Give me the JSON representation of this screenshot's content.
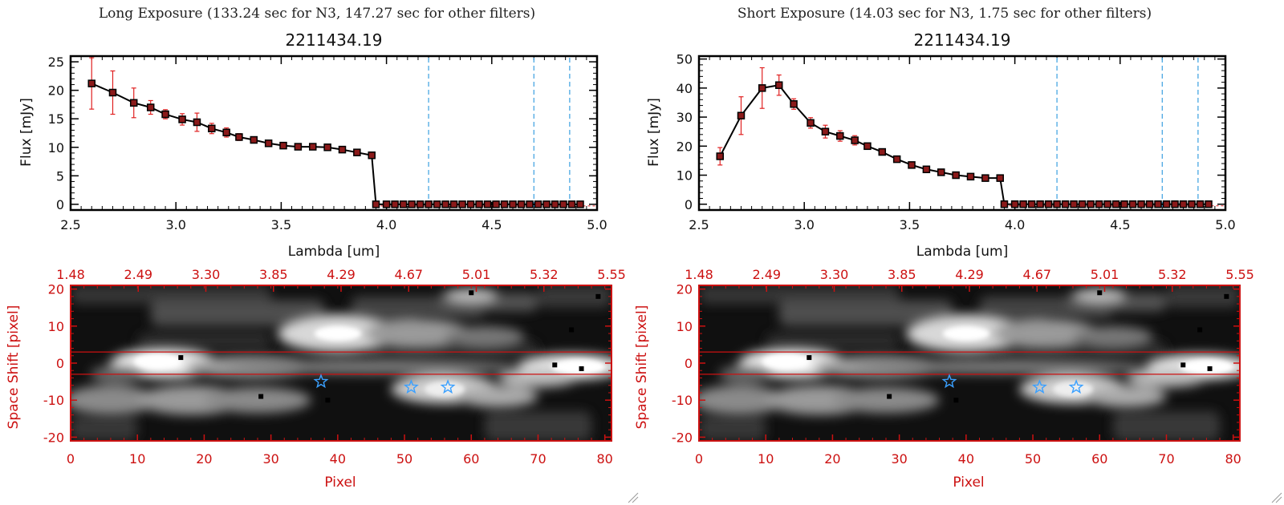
{
  "colors": {
    "data_line": "#000000",
    "error_bar": "#e02020",
    "marker_fill": "#8b1a1a",
    "filter_line": "#3aa0e0",
    "image_axis": "#cc1111",
    "star": "#3aa0ff"
  },
  "chart_data": [
    {
      "id": "long",
      "type": "line",
      "panel_title": "Long Exposure (133.24 sec for N3, 147.27 sec for other filters)",
      "title": "2211434.19",
      "xlabel": "Lambda [um]",
      "ylabel": "Flux [mJy]",
      "xlim": [
        2.5,
        5.0
      ],
      "ylim": [
        -1,
        26
      ],
      "xticks": [
        "2.5",
        "3.0",
        "3.5",
        "4.0",
        "4.5",
        "5.0"
      ],
      "yticks": [
        "0",
        "5",
        "10",
        "15",
        "20",
        "25"
      ],
      "filter_lines": [
        4.2,
        4.7,
        4.87
      ],
      "x": [
        2.6,
        2.7,
        2.8,
        2.88,
        2.95,
        3.03,
        3.1,
        3.17,
        3.24,
        3.3,
        3.37,
        3.44,
        3.51,
        3.58,
        3.65,
        3.72,
        3.79,
        3.86,
        3.93,
        3.95,
        4.0,
        4.04,
        4.08,
        4.12,
        4.16,
        4.2,
        4.24,
        4.28,
        4.32,
        4.36,
        4.4,
        4.44,
        4.48,
        4.52,
        4.56,
        4.6,
        4.64,
        4.68,
        4.72,
        4.76,
        4.8,
        4.84,
        4.88,
        4.92
      ],
      "y": [
        21.2,
        19.6,
        17.8,
        17.0,
        15.8,
        14.9,
        14.4,
        13.3,
        12.6,
        11.8,
        11.3,
        10.7,
        10.3,
        10.1,
        10.1,
        10.0,
        9.6,
        9.1,
        8.6,
        0,
        0,
        0,
        0,
        0,
        0,
        0,
        0,
        0,
        0,
        0,
        0,
        0,
        0,
        0,
        0,
        0,
        0,
        0,
        0,
        0,
        0,
        0,
        0,
        0
      ],
      "err": [
        4.5,
        3.8,
        2.6,
        1.2,
        0.8,
        1.0,
        1.6,
        0.9,
        0.8,
        0.6,
        0.5,
        0.4,
        0.4,
        0.4,
        0.4,
        0.4,
        0.4,
        0.4,
        0.4,
        0,
        0,
        0,
        0,
        0,
        0,
        0,
        0,
        0,
        0,
        0,
        0,
        0,
        0,
        0,
        0,
        0,
        0,
        0,
        0,
        0,
        0,
        0,
        0,
        0
      ]
    },
    {
      "id": "short",
      "type": "line",
      "panel_title": "Short Exposure (14.03 sec for N3, 1.75 sec for other filters)",
      "title": "2211434.19",
      "xlabel": "Lambda [um]",
      "ylabel": "Flux [mJy]",
      "xlim": [
        2.5,
        5.0
      ],
      "ylim": [
        -2,
        51
      ],
      "xticks": [
        "2.5",
        "3.0",
        "3.5",
        "4.0",
        "4.5",
        "5.0"
      ],
      "yticks": [
        "0",
        "10",
        "20",
        "30",
        "40",
        "50"
      ],
      "filter_lines": [
        4.2,
        4.7,
        4.87
      ],
      "x": [
        2.6,
        2.7,
        2.8,
        2.88,
        2.95,
        3.03,
        3.1,
        3.17,
        3.24,
        3.3,
        3.37,
        3.44,
        3.51,
        3.58,
        3.65,
        3.72,
        3.79,
        3.86,
        3.93,
        3.95,
        4.0,
        4.04,
        4.08,
        4.12,
        4.16,
        4.2,
        4.24,
        4.28,
        4.32,
        4.36,
        4.4,
        4.44,
        4.48,
        4.52,
        4.56,
        4.6,
        4.64,
        4.68,
        4.72,
        4.76,
        4.8,
        4.84,
        4.88,
        4.92
      ],
      "y": [
        16.5,
        30.5,
        40.0,
        41.0,
        34.5,
        28.0,
        25.0,
        23.5,
        22.0,
        20.0,
        18.0,
        15.5,
        13.5,
        12.0,
        11.0,
        10.0,
        9.5,
        9.0,
        9.0,
        0,
        0,
        0,
        0,
        0,
        0,
        0,
        0,
        0,
        0,
        0,
        0,
        0,
        0,
        0,
        0,
        0,
        0,
        0,
        0,
        0,
        0,
        0,
        0,
        0
      ],
      "err": [
        3.0,
        6.5,
        7.0,
        3.5,
        1.8,
        1.8,
        2.2,
        1.8,
        1.6,
        1.0,
        0.8,
        0.6,
        0.6,
        0.6,
        0.5,
        0.5,
        0.5,
        0.5,
        0.5,
        0,
        0,
        0,
        0,
        0,
        0,
        0,
        0,
        0,
        0,
        0,
        0,
        0,
        0,
        0,
        0,
        0,
        0,
        0,
        0,
        0,
        0,
        0,
        0,
        0
      ]
    }
  ],
  "images": {
    "xlabel": "Pixel",
    "ylabel": "Space Shift [pixel]",
    "top_ticks": [
      "1.48",
      "2.49",
      "3.30",
      "3.85",
      "4.29",
      "4.67",
      "5.01",
      "5.32",
      "5.55"
    ],
    "bottom_ticks": [
      "0",
      "10",
      "20",
      "30",
      "40",
      "50",
      "60",
      "70",
      "80"
    ],
    "y_ticks": [
      "20",
      "10",
      "0",
      "-10",
      "-20"
    ],
    "xlim": [
      0,
      81
    ],
    "ylim": [
      -21,
      21
    ],
    "aperture": [
      3,
      -3
    ],
    "stars": [
      [
        37.5,
        -5
      ],
      [
        51,
        -6.5
      ],
      [
        56.5,
        -6.5
      ]
    ]
  }
}
